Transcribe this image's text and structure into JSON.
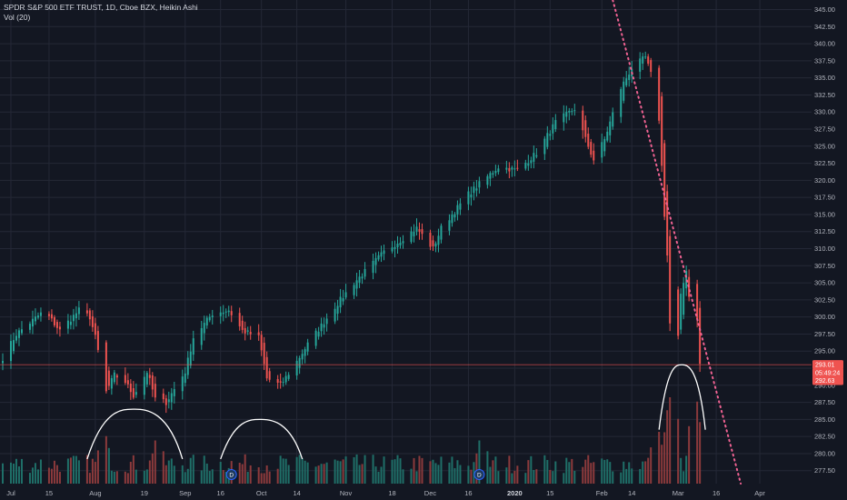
{
  "legend": {
    "symbol_line": "SPDR S&P 500 ETF TRUST, 1D, Cboe BZX, Heikin Ashi",
    "volume_line": "Vol (20)"
  },
  "colors": {
    "background": "#131722",
    "grid": "#242836",
    "up": "#26a69a",
    "down": "#ef5350",
    "up_volume": "#1f6f68",
    "down_volume": "#8c3a3c",
    "trendline": "#f06292",
    "annotation": "#ffffff",
    "axis_text": "#b2b5be"
  },
  "price_tags": [
    {
      "label": "293.01",
      "price": 293.01,
      "color": "#ef5350"
    },
    {
      "label": "05:49:24",
      "price": 291.85,
      "color": "#ef5350"
    },
    {
      "label": "292.63",
      "price": 290.7,
      "color": "#ef5350"
    }
  ],
  "chart_data": {
    "type": "candlestick",
    "style": "Heikin Ashi",
    "interval": "1D",
    "title": "SPDR S&P 500 ETF TRUST, 1D, Cboe BZX, Heikin Ashi",
    "indicator": "Vol (20)",
    "y_axis": {
      "position": "right",
      "range": [
        275.6,
        346.4
      ],
      "ticks": [
        277.5,
        280.0,
        282.5,
        285.0,
        287.5,
        290.0,
        292.5,
        295.0,
        297.5,
        300.0,
        302.5,
        305.0,
        307.5,
        310.0,
        312.5,
        315.0,
        317.5,
        320.0,
        322.5,
        325.0,
        327.5,
        330.0,
        332.5,
        335.0,
        337.5,
        340.0,
        342.5,
        345.0
      ],
      "tick_labels": [
        "277.50",
        "280.00",
        "282.50",
        "285.00",
        "287.50",
        "290.00",
        "292.50",
        "295.00",
        "297.50",
        "300.00",
        "302.50",
        "305.00",
        "307.50",
        "310.00",
        "312.50",
        "315.00",
        "317.50",
        "320.00",
        "322.50",
        "325.00",
        "327.50",
        "330.00",
        "332.50",
        "335.00",
        "337.50",
        "340.00",
        "342.50",
        "345.00"
      ]
    },
    "x_axis": {
      "ticks": [
        {
          "label": "Jul",
          "date": "2019-07-01"
        },
        {
          "label": "15",
          "date": "2019-07-15"
        },
        {
          "label": "Aug",
          "date": "2019-08-01"
        },
        {
          "label": "19",
          "date": "2019-08-19"
        },
        {
          "label": "Sep",
          "date": "2019-09-03"
        },
        {
          "label": "16",
          "date": "2019-09-16"
        },
        {
          "label": "Oct",
          "date": "2019-10-01"
        },
        {
          "label": "14",
          "date": "2019-10-14"
        },
        {
          "label": "Nov",
          "date": "2019-11-01"
        },
        {
          "label": "18",
          "date": "2019-11-18"
        },
        {
          "label": "Dec",
          "date": "2019-12-02"
        },
        {
          "label": "16",
          "date": "2019-12-16"
        },
        {
          "label": "2020",
          "date": "2020-01-02",
          "bold": true
        },
        {
          "label": "15",
          "date": "2020-01-15"
        },
        {
          "label": "Feb",
          "date": "2020-02-03"
        },
        {
          "label": "14",
          "date": "2020-02-14"
        },
        {
          "label": "Mar",
          "date": "2020-03-02"
        },
        {
          "label": "16",
          "date": "2020-03-16"
        },
        {
          "label": "Apr",
          "date": "2020-04-01"
        }
      ],
      "range": [
        "2019-06-27",
        "2020-04-20"
      ]
    },
    "price_path": [
      {
        "date": "2019-06-28",
        "price": 294.0
      },
      {
        "date": "2019-07-03",
        "price": 297.5
      },
      {
        "date": "2019-07-12",
        "price": 300.5
      },
      {
        "date": "2019-07-15",
        "price": 300.0
      },
      {
        "date": "2019-07-19",
        "price": 298.0
      },
      {
        "date": "2019-07-26",
        "price": 301.0
      },
      {
        "date": "2019-07-30",
        "price": 300.0
      },
      {
        "date": "2019-08-01",
        "price": 297.0
      },
      {
        "date": "2019-08-05",
        "price": 289.0
      },
      {
        "date": "2019-08-08",
        "price": 291.5
      },
      {
        "date": "2019-08-12",
        "price": 290.5
      },
      {
        "date": "2019-08-15",
        "price": 288.5
      },
      {
        "date": "2019-08-20",
        "price": 292.0
      },
      {
        "date": "2019-08-23",
        "price": 288.0
      },
      {
        "date": "2019-08-27",
        "price": 287.5
      },
      {
        "date": "2019-09-03",
        "price": 292.0
      },
      {
        "date": "2019-09-06",
        "price": 297.0
      },
      {
        "date": "2019-09-13",
        "price": 300.5
      },
      {
        "date": "2019-09-19",
        "price": 301.0
      },
      {
        "date": "2019-09-24",
        "price": 298.0
      },
      {
        "date": "2019-09-30",
        "price": 297.0
      },
      {
        "date": "2019-10-03",
        "price": 291.0
      },
      {
        "date": "2019-10-08",
        "price": 290.0
      },
      {
        "date": "2019-10-14",
        "price": 293.5
      },
      {
        "date": "2019-10-18",
        "price": 296.0
      },
      {
        "date": "2019-10-28",
        "price": 301.5
      },
      {
        "date": "2019-11-04",
        "price": 305.0
      },
      {
        "date": "2019-11-15",
        "price": 309.5
      },
      {
        "date": "2019-11-27",
        "price": 313.0
      },
      {
        "date": "2019-12-03",
        "price": 310.0
      },
      {
        "date": "2019-12-06",
        "price": 313.0
      },
      {
        "date": "2019-12-16",
        "price": 318.0
      },
      {
        "date": "2019-12-27",
        "price": 322.0
      },
      {
        "date": "2020-01-03",
        "price": 321.5
      },
      {
        "date": "2020-01-10",
        "price": 324.0
      },
      {
        "date": "2020-01-17",
        "price": 328.5
      },
      {
        "date": "2020-01-24",
        "price": 330.5
      },
      {
        "date": "2020-01-28",
        "price": 326.0
      },
      {
        "date": "2020-01-31",
        "price": 323.0
      },
      {
        "date": "2020-02-04",
        "price": 326.0
      },
      {
        "date": "2020-02-10",
        "price": 333.5
      },
      {
        "date": "2020-02-14",
        "price": 336.5
      },
      {
        "date": "2020-02-19",
        "price": 338.0
      },
      {
        "date": "2020-02-21",
        "price": 335.5
      },
      {
        "date": "2020-02-24",
        "price": 329.0
      },
      {
        "date": "2020-02-25",
        "price": 322.0
      },
      {
        "date": "2020-02-26",
        "price": 315.0
      },
      {
        "date": "2020-02-27",
        "price": 309.0
      },
      {
        "date": "2020-02-28",
        "price": 299.0
      },
      {
        "date": "2020-03-02",
        "price": 297.0
      },
      {
        "date": "2020-03-03",
        "price": 303.0
      },
      {
        "date": "2020-03-04",
        "price": 305.0
      },
      {
        "date": "2020-03-05",
        "price": 307.0
      },
      {
        "date": "2020-03-06",
        "price": 303.0
      },
      {
        "date": "2020-03-09",
        "price": 300.0
      },
      {
        "date": "2020-03-10",
        "price": 293.0
      }
    ],
    "current_price": 293.01,
    "trendline": {
      "style": "dotted",
      "from": {
        "date": "2020-02-07",
        "price": 346.4
      },
      "to": {
        "date": "2020-03-25",
        "price": 275.6
      }
    },
    "annotations": [
      {
        "type": "arc",
        "from_date": "2019-07-29",
        "to_date": "2019-09-02",
        "peak_price": 286.5,
        "base_price": 279.2
      },
      {
        "type": "arc",
        "from_date": "2019-09-16",
        "to_date": "2019-10-16",
        "peak_price": 285.0,
        "base_price": 279.2
      },
      {
        "type": "arc",
        "from_date": "2020-02-24",
        "to_date": "2020-03-12",
        "peak_price": 293.0,
        "base_price": 283.5
      }
    ],
    "event_markers": [
      {
        "label": "D",
        "date": "2019-09-20"
      },
      {
        "label": "D",
        "date": "2019-12-20"
      }
    ],
    "volume_spikes": [
      {
        "date": "2019-08-05",
        "level": 0.55
      },
      {
        "date": "2019-08-23",
        "level": 0.5
      },
      {
        "date": "2019-12-20",
        "level": 0.5
      },
      {
        "date": "2020-02-24",
        "level": 0.6
      },
      {
        "date": "2020-02-27",
        "level": 0.85
      },
      {
        "date": "2020-02-28",
        "level": 1.0
      },
      {
        "date": "2020-03-09",
        "level": 0.95
      }
    ]
  }
}
